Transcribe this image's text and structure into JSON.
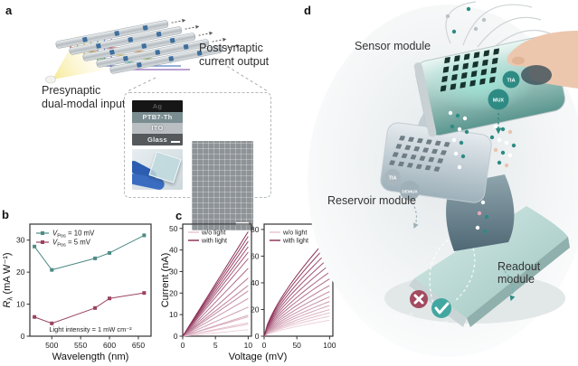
{
  "panel_letters": {
    "a": "a",
    "b": "b",
    "c": "c",
    "d": "d"
  },
  "panel_a": {
    "presynaptic_line1": "Presynaptic",
    "presynaptic_line2": "dual-modal input",
    "postsynaptic_line1": "Postsynaptic",
    "postsynaptic_line2": "current output",
    "stack_layers": [
      "Ag",
      "PTB7-Th",
      "ITO",
      "Glass"
    ]
  },
  "panel_d": {
    "sensor_label": "Sensor module",
    "reservoir_label": "Reservoir module",
    "readout_label": "Readout module",
    "sensor_chips": [
      "TIA",
      "MUX"
    ],
    "reservoir_chips": [
      "TIA",
      "DEMUX"
    ],
    "false_label": "False",
    "true_label": "True"
  },
  "colors": {
    "series_teal": "#4e8b85",
    "series_maroon": "#99435f",
    "iv_light_pink": "#efd2dc",
    "iv_dark_maroon": "#8c2f57",
    "teal_accent": "#2e8b84",
    "badge_false": "#a34b5f",
    "badge_true": "#43a7a1"
  },
  "chart_data": [
    {
      "id": "responsivity",
      "type": "line",
      "x": [
        470,
        500,
        575,
        600,
        660
      ],
      "series": [
        {
          "name": "VPos = 10 mV",
          "legend": {
            "sym": "V",
            "sub": "Pos",
            "rest": " = 10 mV"
          },
          "values": [
            28,
            20.7,
            24.3,
            26,
            31.5
          ],
          "color": "#4e8b85"
        },
        {
          "name": "VPos = 5 mV",
          "legend": {
            "sym": "V",
            "sub": "Pos",
            "rest": " = 5 mV"
          },
          "values": [
            6,
            4,
            8.8,
            11.8,
            13.5
          ],
          "color": "#99435f"
        }
      ],
      "xlabel": "Wavelength (nm)",
      "ylabel": {
        "sym": "R",
        "sub": "λ",
        "rest": " (mA W⁻¹)"
      },
      "xlim": [
        462,
        672
      ],
      "ylim": [
        0,
        35
      ],
      "xticks": [
        500,
        550,
        600,
        650
      ],
      "yticks": [
        0,
        10,
        20,
        30
      ],
      "annotation": "Light intensity = 1 mW cm⁻²",
      "grid": false,
      "legend_position": "top-left"
    },
    {
      "id": "iv_low_voltage",
      "type": "line",
      "ylabel": "Current (nA)",
      "xlim": [
        0,
        10.5
      ],
      "ylim": [
        0,
        52
      ],
      "xticks": [
        0,
        5,
        10
      ],
      "yticks": [
        0,
        10,
        20,
        30,
        40,
        50
      ],
      "legend": [
        "w/o light",
        "with light"
      ],
      "x_end": 10,
      "curve_end_currents": [
        3,
        5.5,
        6.2,
        9,
        9.7,
        13.5,
        17.5,
        21,
        23.5,
        27,
        31.5,
        36,
        39,
        41.5,
        44,
        46.3,
        48.5
      ],
      "curve_exponent": 1.0
    },
    {
      "id": "iv_high_voltage",
      "type": "line",
      "xlim": [
        0,
        105
      ],
      "ylim": [
        0,
        84
      ],
      "xticks": [
        0,
        50,
        100
      ],
      "yticks": [
        0,
        20,
        40,
        60,
        80
      ],
      "legend": [
        "w/o light",
        "with light"
      ],
      "x_end": 100,
      "curve_end_currents": [
        12,
        15,
        17.5,
        20,
        23,
        26,
        29.5,
        33.5,
        38,
        43,
        48,
        53.5,
        59,
        64.5,
        70,
        75
      ],
      "curve_exponent": 0.72
    }
  ],
  "shared_xlabel_c": "Voltage (mV)"
}
